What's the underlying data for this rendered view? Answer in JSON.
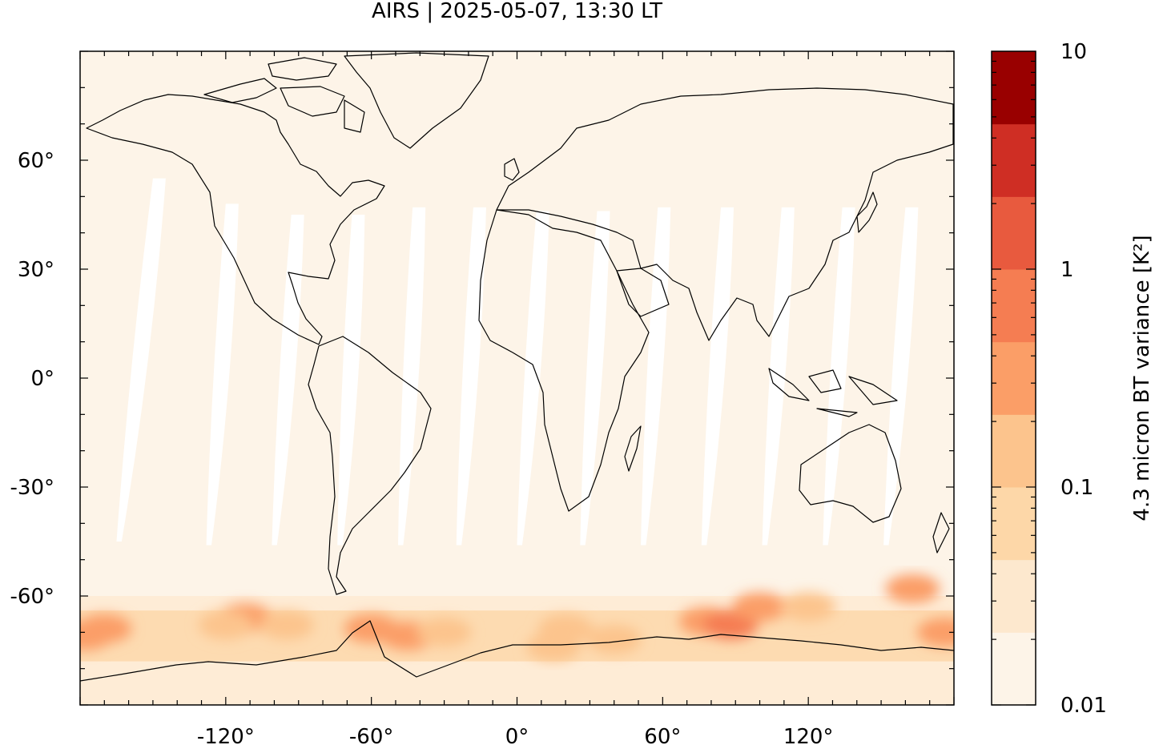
{
  "title": "AIRS | 2025-05-07, 13:30 LT",
  "map": {
    "projection": "plate-carree",
    "lon_range": [
      -180,
      180
    ],
    "lat_range": [
      -90,
      90
    ],
    "x_ticks": [
      {
        "value": -120,
        "label": "-120°"
      },
      {
        "value": -60,
        "label": "-60°"
      },
      {
        "value": 0,
        "label": "0°"
      },
      {
        "value": 60,
        "label": "60°"
      },
      {
        "value": 120,
        "label": "120°"
      }
    ],
    "y_ticks": [
      {
        "value": 60,
        "label": "60°"
      },
      {
        "value": 30,
        "label": "30°"
      },
      {
        "value": 0,
        "label": "0°"
      },
      {
        "value": -30,
        "label": "-30°"
      },
      {
        "value": -60,
        "label": "-60°"
      }
    ],
    "background_color": "#fdf4e8",
    "swath_gap_color": "#ffffff",
    "coastline_color": "#000000",
    "swath_gaps": [
      {
        "lon_n": -150,
        "lon_s": -165,
        "lat_top": 55,
        "lat_bottom": -45
      },
      {
        "lon_n": -120,
        "lon_s": -128,
        "lat_top": 48,
        "lat_bottom": -46
      },
      {
        "lon_n": -93,
        "lon_s": -101,
        "lat_top": 45,
        "lat_bottom": -46
      },
      {
        "lon_n": -68,
        "lon_s": -74,
        "lat_top": 45,
        "lat_bottom": -46
      },
      {
        "lon_n": -43,
        "lon_s": -49,
        "lat_top": 47,
        "lat_bottom": -46
      },
      {
        "lon_n": -18,
        "lon_s": -25,
        "lat_top": 47,
        "lat_bottom": -46
      },
      {
        "lon_n": 8,
        "lon_s": 0,
        "lat_top": 46,
        "lat_bottom": -46
      },
      {
        "lon_n": 33,
        "lon_s": 26,
        "lat_top": 46,
        "lat_bottom": -46
      },
      {
        "lon_n": 58,
        "lon_s": 51,
        "lat_top": 47,
        "lat_bottom": -46
      },
      {
        "lon_n": 84,
        "lon_s": 76,
        "lat_top": 47,
        "lat_bottom": -46
      },
      {
        "lon_n": 109,
        "lon_s": 101,
        "lat_top": 47,
        "lat_bottom": -46
      },
      {
        "lon_n": 134,
        "lon_s": 126,
        "lat_top": 47,
        "lat_bottom": -46
      },
      {
        "lon_n": 160,
        "lon_s": 151,
        "lat_top": 47,
        "lat_bottom": -46
      }
    ],
    "variance_patches": [
      {
        "lon": -170,
        "lat": -69,
        "level": 4
      },
      {
        "lon": -178,
        "lat": -71,
        "level": 4
      },
      {
        "lon": -112,
        "lat": -66,
        "level": 4
      },
      {
        "lon": -120,
        "lat": -68,
        "level": 3
      },
      {
        "lon": -95,
        "lat": -68,
        "level": 3
      },
      {
        "lon": -60,
        "lat": -69,
        "level": 4
      },
      {
        "lon": -45,
        "lat": -71,
        "level": 4
      },
      {
        "lon": -30,
        "lat": -70,
        "level": 3
      },
      {
        "lon": 15,
        "lat": -74,
        "level": 3
      },
      {
        "lon": 20,
        "lat": -69,
        "level": 3
      },
      {
        "lon": 40,
        "lat": -72,
        "level": 3
      },
      {
        "lon": 78,
        "lat": -67,
        "level": 4
      },
      {
        "lon": 88,
        "lat": -68,
        "level": 5
      },
      {
        "lon": 100,
        "lat": -63,
        "level": 4
      },
      {
        "lon": 120,
        "lat": -63,
        "level": 3
      },
      {
        "lon": 163,
        "lat": -58,
        "level": 4
      },
      {
        "lon": 176,
        "lat": -70,
        "level": 4
      }
    ]
  },
  "colorbar": {
    "label": "4.3 micron BT variance [K²]",
    "scale": "log",
    "range": [
      0.01,
      10
    ],
    "ticks": [
      {
        "value": 10,
        "label": "10"
      },
      {
        "value": 1,
        "label": "1"
      },
      {
        "value": 0.1,
        "label": "0.1"
      },
      {
        "value": 0.01,
        "label": "0.01"
      }
    ],
    "colors": [
      "#fdf4e8",
      "#fde8ce",
      "#fdd7a8",
      "#fcc48d",
      "#fb9e67",
      "#f57d52",
      "#e85a3e",
      "#cf2e24",
      "#990000"
    ]
  }
}
